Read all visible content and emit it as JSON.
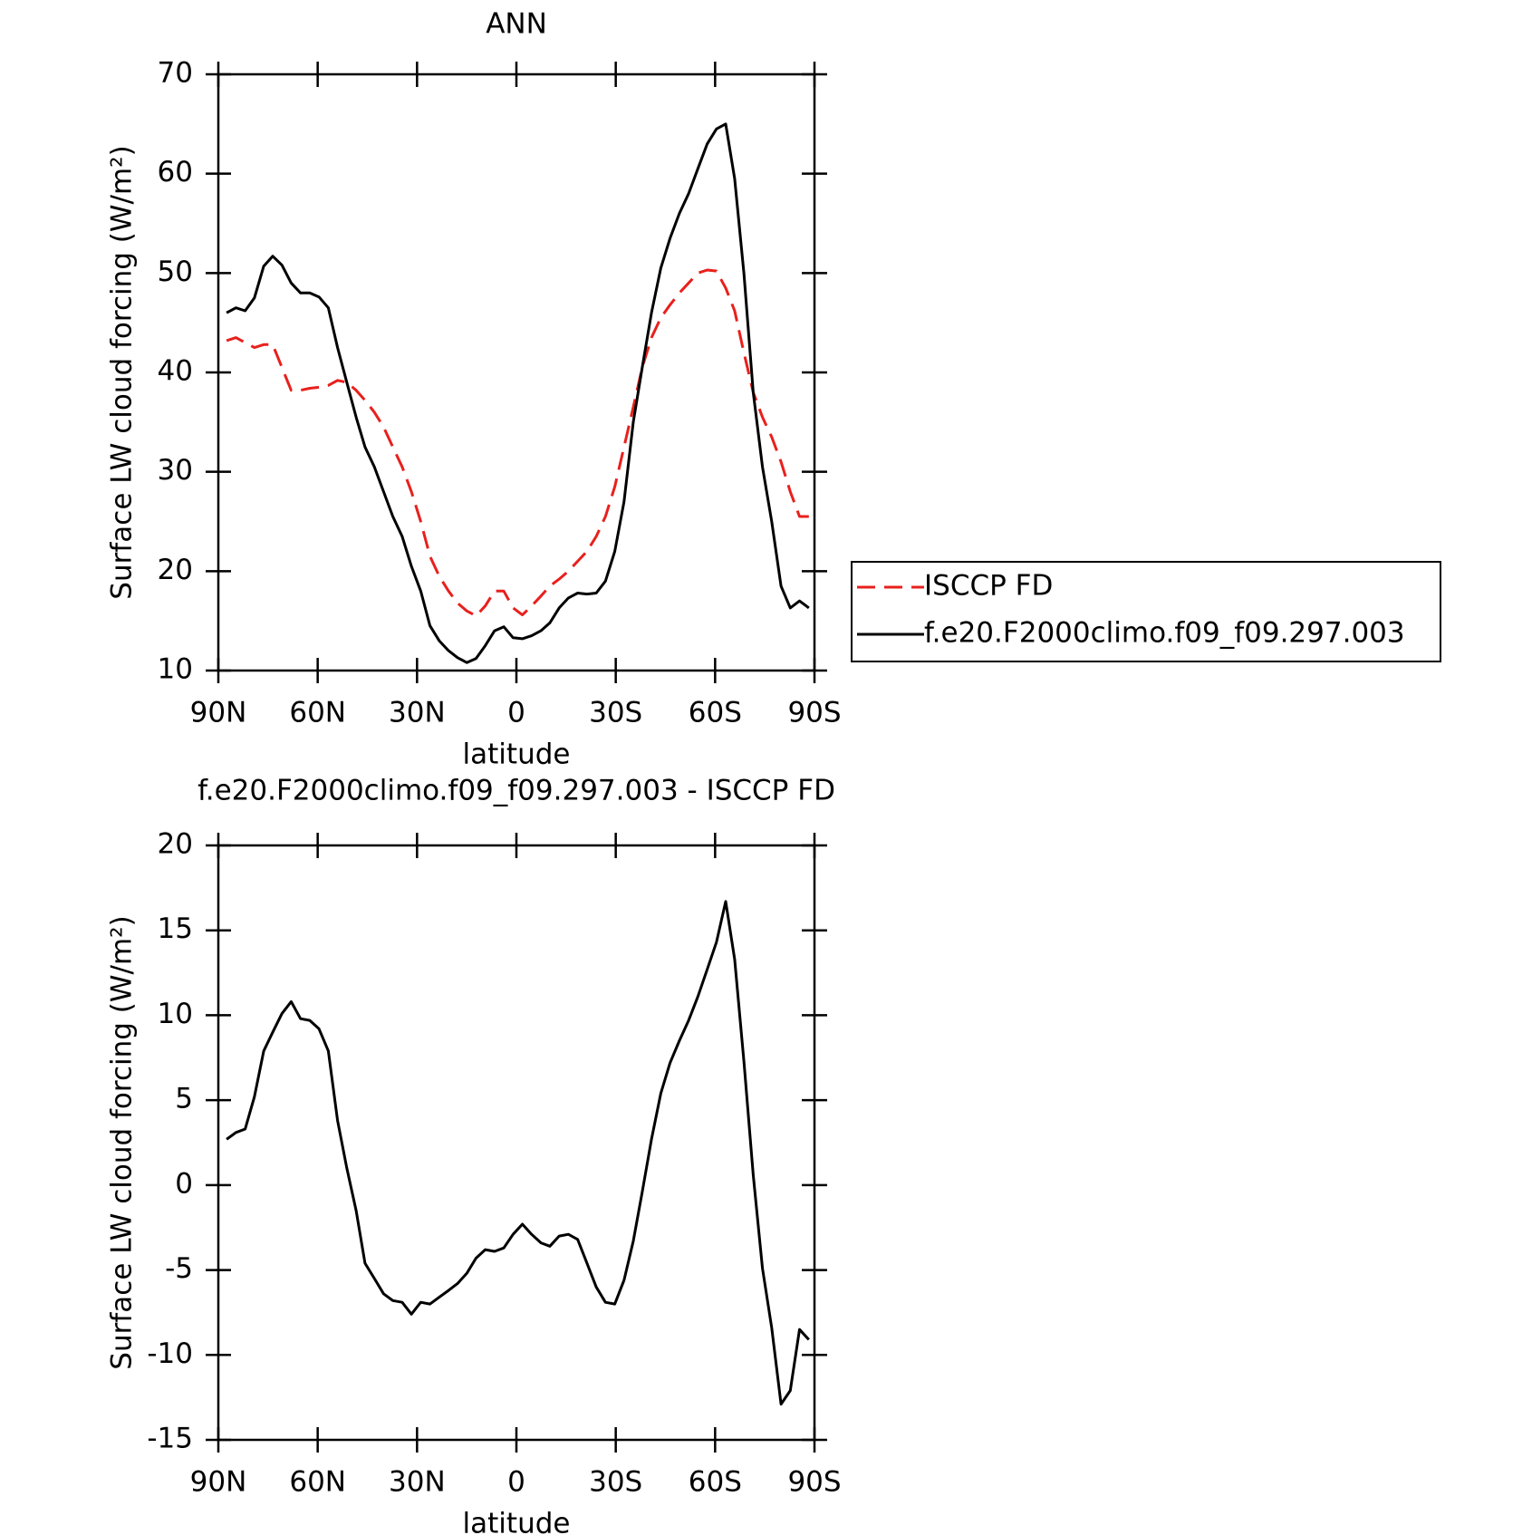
{
  "chart_data": [
    {
      "type": "line",
      "title": "ANN",
      "xlabel": "latitude",
      "ylabel": "Surface LW cloud forcing (W/m²)",
      "xlim": [
        90,
        -90
      ],
      "xticks": [
        {
          "value": 90,
          "label": "90N"
        },
        {
          "value": 60,
          "label": "60N"
        },
        {
          "value": 30,
          "label": "30N"
        },
        0,
        {
          "value": -30,
          "label": "30S"
        },
        {
          "value": -60,
          "label": "60S"
        },
        {
          "value": -90,
          "label": "90S"
        }
      ],
      "ylim": [
        10,
        70
      ],
      "yticks": [
        10,
        20,
        30,
        40,
        50,
        60,
        70
      ],
      "legend": "right",
      "x": [
        87.5,
        84.7,
        81.9,
        79.1,
        76.3,
        73.6,
        70.8,
        68.0,
        65.2,
        62.4,
        59.6,
        56.8,
        54.0,
        51.2,
        48.4,
        45.7,
        42.9,
        40.1,
        37.3,
        34.5,
        31.7,
        28.9,
        26.1,
        23.3,
        20.5,
        17.8,
        15.0,
        12.2,
        9.4,
        6.6,
        3.8,
        1.0,
        -1.8,
        -4.6,
        -7.4,
        -10.1,
        -12.9,
        -15.7,
        -18.5,
        -21.3,
        -24.1,
        -26.9,
        -29.7,
        -32.5,
        -35.3,
        -38.0,
        -40.8,
        -43.6,
        -46.4,
        -49.2,
        -52.0,
        -54.8,
        -57.6,
        -60.4,
        -63.2,
        -65.9,
        -68.7,
        -71.5,
        -74.3,
        -77.1,
        -79.9,
        -82.7,
        -85.5,
        -88.3
      ],
      "series": [
        {
          "name": "ISCCP FD",
          "color": "#e8201c",
          "dashed": true,
          "values": [
            43.2,
            43.5,
            43.0,
            42.5,
            42.8,
            42.8,
            40.5,
            38.2,
            38.2,
            38.4,
            38.5,
            38.7,
            39.2,
            39.0,
            38.2,
            37.2,
            36.0,
            34.5,
            32.5,
            30.5,
            28.0,
            25.0,
            21.5,
            19.5,
            18.0,
            16.8,
            16.0,
            15.5,
            16.5,
            18.0,
            18.0,
            16.3,
            15.6,
            16.5,
            17.5,
            18.5,
            19.2,
            20.0,
            21.0,
            22.0,
            23.5,
            25.5,
            28.5,
            32.5,
            36.5,
            40.5,
            43.5,
            45.5,
            46.8,
            48.0,
            49.0,
            50.0,
            50.3,
            50.2,
            48.5,
            46.2,
            42.0,
            38.0,
            35.5,
            33.5,
            31.0,
            28.0,
            25.5,
            25.5
          ]
        },
        {
          "name": "f.e20.F2000climo.f09_f09.297.003",
          "color": "#000000",
          "dashed": false,
          "values": [
            46.0,
            46.5,
            46.2,
            47.5,
            50.7,
            51.7,
            50.8,
            49.0,
            48.0,
            48.0,
            47.6,
            46.5,
            42.5,
            39.0,
            35.5,
            32.5,
            30.5,
            28.0,
            25.5,
            23.5,
            20.5,
            18.0,
            14.5,
            13.0,
            12.0,
            11.3,
            10.8,
            11.2,
            12.5,
            14.0,
            14.4,
            13.3,
            13.2,
            13.5,
            14.0,
            14.8,
            16.3,
            17.3,
            17.8,
            17.7,
            17.8,
            19.0,
            22.0,
            27.0,
            35.0,
            40.5,
            46.0,
            50.5,
            53.5,
            56.0,
            58.0,
            60.5,
            63.0,
            64.5,
            65.0,
            59.5,
            50.0,
            38.0,
            30.5,
            25.0,
            18.5,
            16.3,
            17.0,
            16.3
          ]
        }
      ]
    },
    {
      "type": "line",
      "title": "f.e20.F2000climo.f09_f09.297.003 - ISCCP FD",
      "xlabel": "latitude",
      "ylabel": "Surface LW cloud forcing (W/m²)",
      "xlim": [
        90,
        -90
      ],
      "xticks": [
        {
          "value": 90,
          "label": "90N"
        },
        {
          "value": 60,
          "label": "60N"
        },
        {
          "value": 30,
          "label": "30N"
        },
        0,
        {
          "value": -30,
          "label": "30S"
        },
        {
          "value": -60,
          "label": "60S"
        },
        {
          "value": -90,
          "label": "90S"
        }
      ],
      "ylim": [
        -15,
        20
      ],
      "yticks": [
        -15,
        -10,
        -5,
        0,
        5,
        10,
        15,
        20
      ],
      "x": [
        87.5,
        84.7,
        81.9,
        79.1,
        76.3,
        73.6,
        70.8,
        68.0,
        65.2,
        62.4,
        59.6,
        56.8,
        54.0,
        51.2,
        48.4,
        45.7,
        42.9,
        40.1,
        37.3,
        34.5,
        31.7,
        28.9,
        26.1,
        23.3,
        20.5,
        17.8,
        15.0,
        12.2,
        9.4,
        6.6,
        3.8,
        1.0,
        -1.8,
        -4.6,
        -7.4,
        -10.1,
        -12.9,
        -15.7,
        -18.5,
        -21.3,
        -24.1,
        -26.9,
        -29.7,
        -32.5,
        -35.3,
        -38.0,
        -40.8,
        -43.6,
        -46.4,
        -49.2,
        -52.0,
        -54.8,
        -57.6,
        -60.4,
        -63.2,
        -65.9,
        -68.7,
        -71.5,
        -74.3,
        -77.1,
        -79.9,
        -82.7,
        -85.5,
        -88.3
      ],
      "series": [
        {
          "color": "#000000",
          "values": [
            2.7,
            3.1,
            3.3,
            5.2,
            7.9,
            9.0,
            10.1,
            10.8,
            9.8,
            9.7,
            9.2,
            7.9,
            3.8,
            1.0,
            -1.5,
            -4.6,
            -5.5,
            -6.4,
            -6.8,
            -6.9,
            -7.6,
            -6.9,
            -7.0,
            -6.6,
            -6.2,
            -5.8,
            -5.2,
            -4.3,
            -3.8,
            -3.9,
            -3.7,
            -2.9,
            -2.3,
            -2.9,
            -3.4,
            -3.6,
            -3.0,
            -2.9,
            -3.2,
            -4.6,
            -6.0,
            -6.9,
            -7.0,
            -5.6,
            -3.3,
            -0.4,
            2.7,
            5.4,
            7.2,
            8.5,
            9.7,
            11.1,
            12.7,
            14.3,
            16.7,
            13.3,
            7.3,
            0.6,
            -4.9,
            -8.4,
            -12.9,
            -12.1,
            -8.5,
            -9.1
          ]
        }
      ]
    }
  ]
}
